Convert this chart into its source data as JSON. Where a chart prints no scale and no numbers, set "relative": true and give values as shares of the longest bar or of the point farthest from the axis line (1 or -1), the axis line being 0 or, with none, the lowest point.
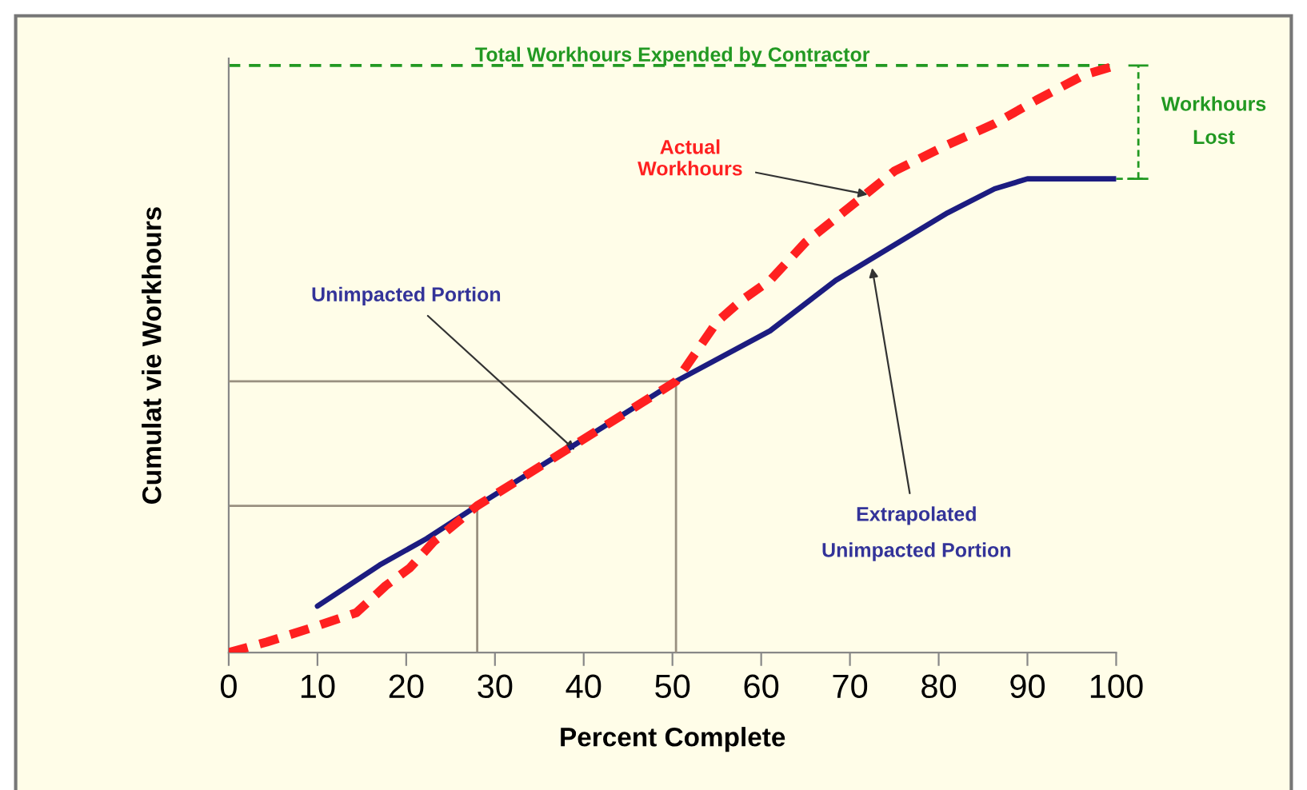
{
  "chart_data": {
    "type": "line",
    "relative": true,
    "xlabel": "Percent Complete",
    "ylabel": "Cumulat vie Workhours",
    "xlim": [
      0,
      100
    ],
    "xticks": [
      0,
      10,
      20,
      30,
      40,
      50,
      60,
      70,
      80,
      90,
      100
    ],
    "grid": false,
    "series": [
      {
        "color": "#999080",
        "line_style": "solid",
        "x": [
          0,
          28,
          28
        ],
        "values": [
          0.25,
          0.25,
          0
        ]
      },
      {
        "color": "#999080",
        "line_style": "solid",
        "x": [
          0,
          50.4,
          50.4
        ],
        "values": [
          0.462,
          0.462,
          0
        ]
      },
      {
        "color": "#1c1c80",
        "line_style": "solid",
        "x": [
          10,
          17,
          22.3,
          28,
          50.4,
          61,
          68.4,
          81,
          86.3,
          90,
          100
        ],
        "values": [
          0.079,
          0.149,
          0.194,
          0.25,
          0.462,
          0.548,
          0.634,
          0.749,
          0.79,
          0.807,
          0.807
        ]
      },
      {
        "color": "#ff2020",
        "line_style": "dashed",
        "x": [
          0,
          4.3,
          9.7,
          14.4,
          17.7,
          20.4,
          23.1,
          28,
          50.4,
          55,
          57.7,
          61,
          65,
          70.4,
          75,
          81,
          86.3,
          91,
          96.4,
          100
        ],
        "values": [
          0,
          0.018,
          0.044,
          0.068,
          0.114,
          0.144,
          0.189,
          0.25,
          0.462,
          0.563,
          0.599,
          0.634,
          0.699,
          0.764,
          0.82,
          0.865,
          0.901,
          0.941,
          0.984,
          1
        ]
      }
    ],
    "ref_lines": [
      {
        "axis": "y",
        "value": 1,
        "label": "Total Workhours Expended by Contractor",
        "color": "#229922",
        "line_style": "dashed"
      }
    ],
    "annotations": [
      {
        "text": "Actual\nWorkhours",
        "x": 72,
        "y": 0.78
      },
      {
        "text": "Unimpacted Portion",
        "x": 39,
        "y": 0.345
      },
      {
        "text": "Extrapolated\nUnimpacted Portion",
        "x": 72.5,
        "y": 0.655
      },
      "Workhours\nLost"
    ]
  }
}
